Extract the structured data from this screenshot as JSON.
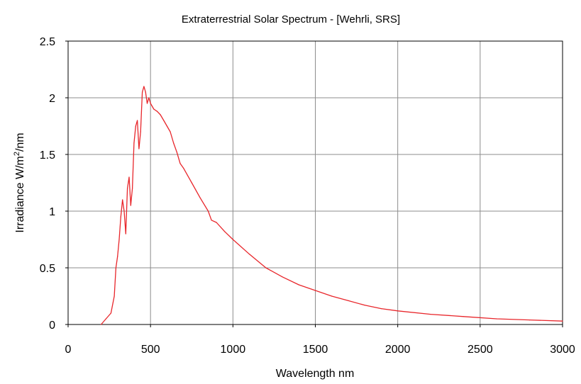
{
  "chart_data": {
    "type": "line",
    "title": "Extraterrestrial Solar Spectrum - [Wehrli, SRS]",
    "xlabel": "Wavelength nm",
    "ylabel_main": "Irradiance W/m",
    "ylabel_sup": "2",
    "ylabel_tail": "/nm",
    "xlim": [
      0,
      3000
    ],
    "ylim": [
      0,
      2.5
    ],
    "x_ticks": [
      "0",
      "500",
      "1000",
      "1500",
      "2000",
      "2500",
      "3000"
    ],
    "y_ticks": [
      "0",
      "0.5",
      "1",
      "1.5",
      "2",
      "2.5"
    ],
    "grid": true,
    "series": [
      {
        "color": "#e8262b",
        "x": [
          200,
          230,
          260,
          280,
          290,
          300,
          310,
          320,
          330,
          340,
          350,
          360,
          370,
          380,
          390,
          400,
          410,
          420,
          430,
          440,
          450,
          460,
          470,
          480,
          490,
          500,
          520,
          540,
          560,
          580,
          600,
          620,
          640,
          660,
          680,
          700,
          750,
          800,
          850,
          870,
          900,
          950,
          1000,
          1100,
          1200,
          1300,
          1400,
          1500,
          1600,
          1700,
          1800,
          1900,
          2000,
          2200,
          2400,
          2600,
          2800,
          3000
        ],
        "y": [
          0.0,
          0.05,
          0.1,
          0.25,
          0.5,
          0.6,
          0.75,
          0.95,
          1.1,
          1.0,
          0.8,
          1.2,
          1.3,
          1.05,
          1.2,
          1.6,
          1.75,
          1.8,
          1.55,
          1.7,
          2.05,
          2.1,
          2.05,
          1.95,
          2.0,
          1.95,
          1.9,
          1.88,
          1.85,
          1.8,
          1.75,
          1.7,
          1.6,
          1.52,
          1.42,
          1.38,
          1.25,
          1.12,
          1.0,
          0.92,
          0.9,
          0.82,
          0.75,
          0.62,
          0.5,
          0.42,
          0.35,
          0.3,
          0.25,
          0.21,
          0.17,
          0.14,
          0.12,
          0.09,
          0.07,
          0.05,
          0.04,
          0.03
        ]
      }
    ]
  }
}
